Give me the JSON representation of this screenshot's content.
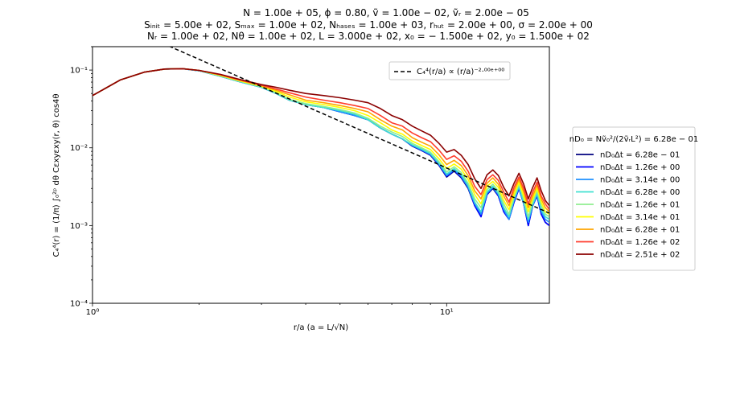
{
  "header": {
    "line1": "N = 1.00e + 05, ϕ = 0.80, ṽ = 1.00e − 02, ṽᵣ = 2.00e − 05",
    "line2": "Sᵢₙᵢₜ = 5.00e + 02, Sₘₐₓ = 1.00e + 02, Nₕₐₛₑₛ = 1.00e + 03, rₕᵤₜ = 2.00e + 00, σ = 2.00e + 00",
    "line3": "Nᵣ = 1.00e + 02, Nθ = 1.00e + 02, L = 3.000e + 02, x₀ = − 1.500e + 02, y₀ = 1.500e + 02"
  },
  "chart_data": {
    "type": "line",
    "title": "",
    "xlabel": "r/a (a = L/√N)",
    "ylabel": "C₄⁴(r) = (1/π) ∫₀²ᵖ dθ Cεxyεxy(r, θ) cos4θ",
    "xscale": "log",
    "yscale": "log",
    "xlim": [
      1.0,
      19.5
    ],
    "ylim": [
      0.0001,
      0.2
    ],
    "xticks": [
      {
        "v": 1,
        "label": "10⁰"
      },
      {
        "v": 10,
        "label": "10¹"
      }
    ],
    "yticks": [
      {
        "v": 0.1,
        "label": "10⁻¹"
      },
      {
        "v": 0.01,
        "label": "10⁻²"
      },
      {
        "v": 0.001,
        "label": "10⁻³"
      },
      {
        "v": 0.0001,
        "label": "10⁻⁴"
      }
    ],
    "x": [
      1.0,
      1.2,
      1.4,
      1.6,
      1.8,
      2.0,
      2.3,
      2.6,
      3.0,
      3.3,
      3.6,
      4.0,
      4.5,
      5.0,
      5.5,
      6.0,
      6.5,
      7.0,
      7.5,
      8.0,
      8.5,
      9.0,
      9.5,
      10.0,
      10.5,
      11.0,
      11.5,
      12.0,
      12.5,
      13.0,
      13.5,
      14.0,
      14.5,
      15.0,
      15.5,
      16.0,
      16.5,
      17.0,
      17.5,
      18.0,
      18.5,
      19.0,
      19.5
    ],
    "series": [
      {
        "name": "nD₀Δt = 6.28e − 01",
        "color": "#00007f",
        "values": [
          0.047,
          0.075,
          0.094,
          0.103,
          0.104,
          0.098,
          0.083,
          0.071,
          0.06,
          0.05,
          0.041,
          0.036,
          0.033,
          0.029,
          0.026,
          0.023,
          0.018,
          0.015,
          0.013,
          0.0105,
          0.0092,
          0.008,
          0.006,
          0.0042,
          0.005,
          0.0041,
          0.003,
          0.0018,
          0.0013,
          0.0025,
          0.003,
          0.0024,
          0.0015,
          0.0012,
          0.002,
          0.003,
          0.0019,
          0.001,
          0.0018,
          0.0024,
          0.0014,
          0.0011,
          0.001
        ]
      },
      {
        "name": "nD₀Δt = 1.26e + 00",
        "color": "#0000ff",
        "values": [
          0.047,
          0.075,
          0.094,
          0.103,
          0.104,
          0.098,
          0.083,
          0.071,
          0.06,
          0.05,
          0.041,
          0.036,
          0.033,
          0.029,
          0.026,
          0.023,
          0.018,
          0.015,
          0.013,
          0.0106,
          0.0093,
          0.0081,
          0.0061,
          0.0043,
          0.0051,
          0.0042,
          0.0031,
          0.0018,
          0.0013,
          0.0025,
          0.0031,
          0.0024,
          0.0015,
          0.0012,
          0.002,
          0.003,
          0.0019,
          0.001,
          0.0018,
          0.0024,
          0.0014,
          0.0011,
          0.001
        ]
      },
      {
        "name": "nD₀Δt = 3.14e + 00",
        "color": "#1e90ff",
        "values": [
          0.047,
          0.075,
          0.094,
          0.103,
          0.104,
          0.098,
          0.083,
          0.071,
          0.06,
          0.05,
          0.041,
          0.036,
          0.033,
          0.029,
          0.026,
          0.023,
          0.018,
          0.015,
          0.013,
          0.0107,
          0.0094,
          0.0082,
          0.0062,
          0.0044,
          0.0052,
          0.0043,
          0.0031,
          0.0019,
          0.0014,
          0.0026,
          0.0031,
          0.0025,
          0.0016,
          0.0012,
          0.0021,
          0.0031,
          0.0019,
          0.0011,
          0.0018,
          0.0025,
          0.0015,
          0.0012,
          0.0011
        ]
      },
      {
        "name": "nD₀Δt = 6.28e + 00",
        "color": "#40e0d0",
        "values": [
          0.047,
          0.075,
          0.094,
          0.103,
          0.104,
          0.098,
          0.083,
          0.071,
          0.06,
          0.05,
          0.041,
          0.036,
          0.033,
          0.03,
          0.027,
          0.023,
          0.018,
          0.015,
          0.013,
          0.0109,
          0.0096,
          0.0084,
          0.0064,
          0.0046,
          0.0054,
          0.0045,
          0.0033,
          0.002,
          0.0015,
          0.0027,
          0.0032,
          0.0026,
          0.0017,
          0.0013,
          0.0022,
          0.0032,
          0.002,
          0.0012,
          0.0019,
          0.0026,
          0.0016,
          0.0013,
          0.0012
        ]
      },
      {
        "name": "nD₀Δt = 1.26e + 01",
        "color": "#90ee90",
        "values": [
          0.047,
          0.075,
          0.094,
          0.103,
          0.104,
          0.099,
          0.084,
          0.072,
          0.061,
          0.051,
          0.042,
          0.037,
          0.034,
          0.031,
          0.028,
          0.024,
          0.019,
          0.016,
          0.014,
          0.0114,
          0.01,
          0.0088,
          0.0067,
          0.0049,
          0.0057,
          0.0048,
          0.0035,
          0.0022,
          0.0017,
          0.0029,
          0.0034,
          0.0028,
          0.0019,
          0.0014,
          0.0023,
          0.0034,
          0.0022,
          0.0013,
          0.002,
          0.0028,
          0.0018,
          0.0014,
          0.0013
        ]
      },
      {
        "name": "nD₀Δt = 3.14e + 01",
        "color": "#ffff00",
        "values": [
          0.047,
          0.075,
          0.094,
          0.103,
          0.104,
          0.099,
          0.085,
          0.073,
          0.062,
          0.053,
          0.045,
          0.039,
          0.036,
          0.033,
          0.03,
          0.026,
          0.021,
          0.017,
          0.015,
          0.0122,
          0.0107,
          0.0095,
          0.0073,
          0.0054,
          0.0062,
          0.0053,
          0.0039,
          0.0025,
          0.0019,
          0.0032,
          0.0037,
          0.0031,
          0.0021,
          0.0016,
          0.0025,
          0.0036,
          0.0024,
          0.0015,
          0.0022,
          0.003,
          0.002,
          0.0015,
          0.0014
        ]
      },
      {
        "name": "nD₀Δt = 6.28e + 01",
        "color": "#ffa500",
        "values": [
          0.047,
          0.075,
          0.094,
          0.103,
          0.104,
          0.099,
          0.086,
          0.074,
          0.063,
          0.055,
          0.048,
          0.041,
          0.038,
          0.035,
          0.032,
          0.029,
          0.023,
          0.019,
          0.017,
          0.0135,
          0.0118,
          0.0105,
          0.0082,
          0.0061,
          0.0069,
          0.0059,
          0.0044,
          0.0028,
          0.0022,
          0.0035,
          0.0041,
          0.0034,
          0.0024,
          0.0018,
          0.0028,
          0.0039,
          0.0027,
          0.0017,
          0.0024,
          0.0033,
          0.0022,
          0.0017,
          0.0015
        ]
      },
      {
        "name": "nD₀Δt = 1.26e + 02",
        "color": "#ff3d2e",
        "values": [
          0.047,
          0.075,
          0.094,
          0.103,
          0.104,
          0.099,
          0.087,
          0.075,
          0.064,
          0.057,
          0.051,
          0.045,
          0.041,
          0.038,
          0.035,
          0.032,
          0.026,
          0.021,
          0.019,
          0.0155,
          0.0135,
          0.012,
          0.0094,
          0.0071,
          0.0079,
          0.0067,
          0.005,
          0.0032,
          0.0025,
          0.0039,
          0.0045,
          0.0038,
          0.0027,
          0.002,
          0.0031,
          0.0042,
          0.003,
          0.0019,
          0.0027,
          0.0036,
          0.0024,
          0.0019,
          0.0016
        ]
      },
      {
        "name": "nD₀Δt = 2.51e + 02",
        "color": "#8b0000",
        "values": [
          0.047,
          0.075,
          0.094,
          0.103,
          0.104,
          0.099,
          0.088,
          0.076,
          0.065,
          0.06,
          0.055,
          0.05,
          0.047,
          0.044,
          0.041,
          0.038,
          0.032,
          0.026,
          0.023,
          0.019,
          0.0165,
          0.0145,
          0.0115,
          0.0088,
          0.0095,
          0.008,
          0.0061,
          0.004,
          0.003,
          0.0045,
          0.0052,
          0.0044,
          0.0031,
          0.0024,
          0.0035,
          0.0047,
          0.0034,
          0.0022,
          0.0031,
          0.0041,
          0.0028,
          0.0021,
          0.0018
        ]
      }
    ],
    "reference_line": {
      "label": "C₄⁴(r/a) ∝ (r/a)⁻²·⁰⁰ᵉ⁺⁰⁰",
      "exponent": -2.0,
      "prefactor": 0.55,
      "color": "#000000",
      "style": "dashed"
    },
    "legend": {
      "placement": "outside-right",
      "title": "nD₀ = Nṽ₀²/(2ṽᵣL²) = 6.28e − 01"
    }
  }
}
